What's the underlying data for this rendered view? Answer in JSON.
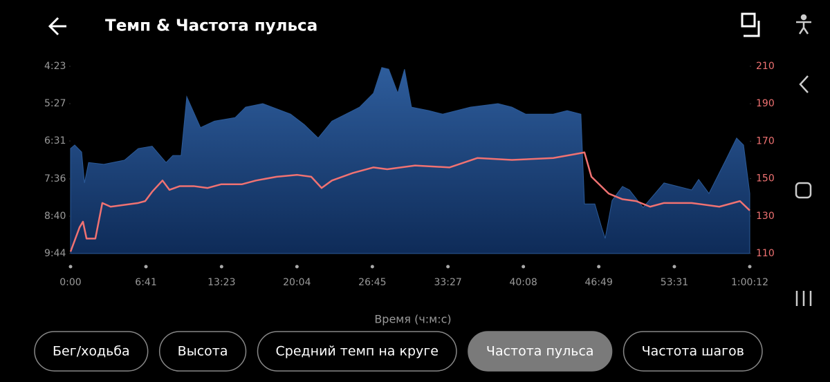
{
  "header": {
    "title": "Темп & Частота пульса"
  },
  "chart_data": {
    "type": "area",
    "x_label": "Время (ч:м:с)",
    "xlim": [
      0,
      3612
    ],
    "xticks": [
      {
        "value": 0,
        "label": "0:00"
      },
      {
        "value": 401,
        "label": "6:41"
      },
      {
        "value": 803,
        "label": "13:23"
      },
      {
        "value": 1204,
        "label": "20:04"
      },
      {
        "value": 1605,
        "label": "26:45"
      },
      {
        "value": 2007,
        "label": "33:27"
      },
      {
        "value": 2408,
        "label": "40:08"
      },
      {
        "value": 2809,
        "label": "46:49"
      },
      {
        "value": 3211,
        "label": "53:31"
      },
      {
        "value": 3612,
        "label": "1:00:12"
      }
    ],
    "ylim": [
      584,
      263
    ],
    "yticks": [
      {
        "value": 263,
        "label": "4:23"
      },
      {
        "value": 327,
        "label": "5:27"
      },
      {
        "value": 391,
        "label": "6:31"
      },
      {
        "value": 456,
        "label": "7:36"
      },
      {
        "value": 520,
        "label": "8:40"
      },
      {
        "value": 584,
        "label": "9:44"
      }
    ],
    "y2lim": [
      110,
      210
    ],
    "y2ticks": [
      210,
      190,
      170,
      150,
      130,
      110
    ],
    "y2_color": "#f07272",
    "series": [
      {
        "type": "area",
        "color": "#2b5a98",
        "x": [
          0,
          22,
          59,
          74,
          96,
          177,
          287,
          360,
          434,
          508,
          544,
          588,
          618,
          691,
          765,
          875,
          931,
          1022,
          1170,
          1243,
          1317,
          1390,
          1464,
          1537,
          1611,
          1655,
          1692,
          1740,
          1776,
          1813,
          1905,
          1979,
          2126,
          2273,
          2347,
          2420,
          2567,
          2641,
          2714,
          2733,
          2788,
          2825,
          2843,
          2880,
          2935,
          2972,
          3045,
          3156,
          3229,
          3303,
          3340,
          3395,
          3487,
          3542,
          3579,
          3612
        ],
        "values": [
          404,
          398,
          410,
          463,
          428,
          431,
          424,
          404,
          400,
          428,
          416,
          416,
          315,
          368,
          357,
          351,
          333,
          327,
          345,
          363,
          386,
          357,
          345,
          333,
          309,
          265,
          268,
          309,
          268,
          333,
          339,
          345,
          333,
          327,
          333,
          345,
          345,
          339,
          345,
          499,
          499,
          540,
          558,
          493,
          469,
          475,
          505,
          463,
          469,
          475,
          457,
          481,
          422,
          386,
          398,
          481
        ]
      },
      {
        "type": "line",
        "axis": "y2",
        "color": "#f07272",
        "x": [
          0,
          48,
          66,
          85,
          132,
          169,
          213,
          360,
          397,
          434,
          489,
          526,
          581,
          655,
          728,
          802,
          912,
          986,
          1096,
          1206,
          1280,
          1335,
          1390,
          1501,
          1611,
          1684,
          1832,
          2016,
          2163,
          2347,
          2567,
          2678,
          2733,
          2770,
          2862,
          2935,
          3008,
          3082,
          3156,
          3303,
          3450,
          3560,
          3612
        ],
        "values": [
          111,
          124,
          127,
          118,
          118,
          137,
          135,
          137,
          138,
          143,
          149,
          144,
          146,
          146,
          145,
          147,
          147,
          149,
          151,
          152,
          151,
          145,
          149,
          153,
          156,
          155,
          157,
          156,
          161,
          160,
          161,
          163,
          164,
          151,
          142,
          139,
          138,
          135,
          137,
          137,
          135,
          138,
          133
        ]
      }
    ]
  },
  "tabs": {
    "items": [
      "Бег/ходьба",
      "Высота",
      "Средний темп на круге",
      "Частота пульса",
      "Частота шагов"
    ],
    "selected": 3
  }
}
